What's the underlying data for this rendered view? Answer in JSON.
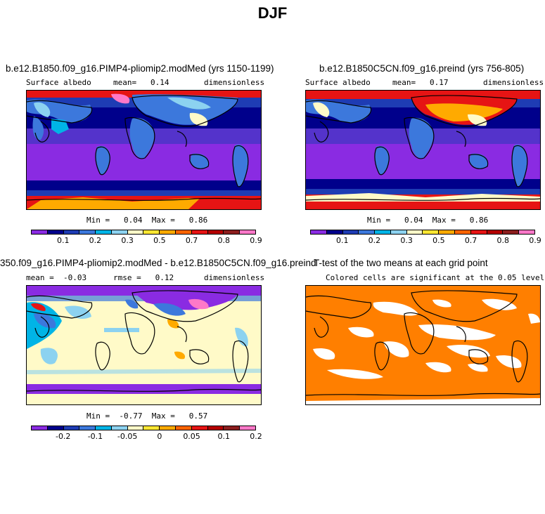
{
  "figure_title": "DJF",
  "panels": [
    {
      "title": "b.e12.B1850.f09_g16.PIMP4-pliomip2.modMed (yrs 1150-1199)",
      "sub_left": "Surface albedo",
      "sub_mid": "mean=   0.14",
      "sub_right": "dimensionless",
      "stats": "Min =   0.04  Max =   0.86"
    },
    {
      "title": "b.e12.B1850C5CN.f09_g16.preind (yrs 756-805)",
      "sub_left": "Surface albedo",
      "sub_mid": "mean=   0.17",
      "sub_right": "dimensionless",
      "stats": "Min =   0.04  Max =   0.86"
    },
    {
      "title": "350.f09_g16.PIMP4-pliomip2.modMed - b.e12.B1850C5CN.f09_g16.preind",
      "sub_left": "mean =  -0.03",
      "sub_mid": "rmse =   0.12",
      "sub_right": "dimensionless",
      "stats": "Min =  -0.77  Max =   0.57"
    },
    {
      "title": "T-test of the two means at each grid point",
      "sub_left": "Colored cells are significant at the 0.05 level",
      "sub_mid": "",
      "sub_right": ""
    }
  ],
  "colorbar_abs": {
    "colors": [
      "#8a2be2",
      "#00008b",
      "#1e3cb4",
      "#3c78dc",
      "#00b4e6",
      "#8cd2f0",
      "#fffac8",
      "#ffe632",
      "#ffaa00",
      "#ff6400",
      "#e61414",
      "#b40000",
      "#8c1e1e",
      "#ff78c8"
    ],
    "ticks": [
      "0.1",
      "0.2",
      "0.3",
      "0.5",
      "0.7",
      "0.8",
      "0.9"
    ]
  },
  "colorbar_diff": {
    "colors": [
      "#8a2be2",
      "#00008b",
      "#1e3cb4",
      "#3c78dc",
      "#00b4e6",
      "#8cd2f0",
      "#fffac8",
      "#ffe632",
      "#ffaa00",
      "#ff6400",
      "#e61414",
      "#b40000",
      "#8c1e1e",
      "#ff78c8"
    ],
    "ticks": [
      "-0.2",
      "-0.1",
      "-0.05",
      "0",
      "0.05",
      "0.1",
      "0.2"
    ]
  },
  "chart_data": [
    {
      "type": "heatmap",
      "title": "b.e12.B1850.f09_g16.PIMP4-pliomip2.modMed (yrs 1150-1199)",
      "variable": "Surface albedo",
      "units": "dimensionless",
      "mean": 0.14,
      "min": 0.04,
      "max": 0.86
    },
    {
      "type": "heatmap",
      "title": "b.e12.B1850C5CN.f09_g16.preind (yrs 756-805)",
      "variable": "Surface albedo",
      "units": "dimensionless",
      "mean": 0.17,
      "min": 0.04,
      "max": 0.86
    },
    {
      "type": "heatmap",
      "title": "350.f09_g16.PIMP4-pliomip2.modMed - b.e12.B1850C5CN.f09_g16.preind",
      "units": "dimensionless",
      "mean": -0.03,
      "rmse": 0.12,
      "min": -0.77,
      "max": 0.57
    },
    {
      "type": "heatmap",
      "title": "T-test of the two means at each grid point",
      "note": "Colored cells are significant at the 0.05 level"
    }
  ]
}
